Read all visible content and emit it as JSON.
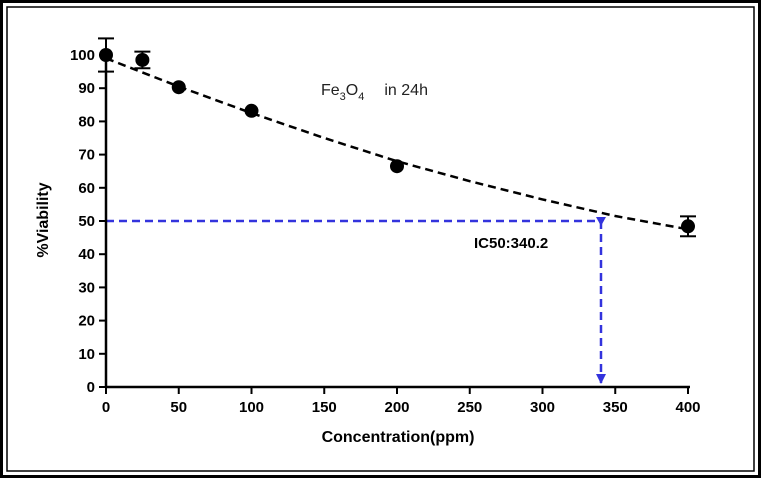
{
  "chart_data": {
    "type": "scatter",
    "title": "",
    "title_parts": {
      "base1": "Fe",
      "sub1": "3",
      "base2": "O",
      "sub2": "4",
      "rest": "in 24h"
    },
    "xlabel": "Concentration(ppm)",
    "ylabel": "%Viability",
    "xlim": [
      0,
      400
    ],
    "ylim": [
      0,
      100
    ],
    "xticks": [
      0,
      50,
      100,
      150,
      200,
      250,
      300,
      350,
      400
    ],
    "yticks": [
      0,
      10,
      20,
      30,
      40,
      50,
      60,
      70,
      80,
      90,
      100
    ],
    "grid": false,
    "x": [
      0,
      25,
      50,
      100,
      200,
      400
    ],
    "y": [
      100,
      98.5,
      90.3,
      83.2,
      66.5,
      48.4
    ],
    "error": [
      5,
      2.5,
      0,
      0,
      0,
      3
    ],
    "fit_curve": {
      "style": "dashed",
      "color": "#000000",
      "x": [
        0,
        50,
        100,
        150,
        200,
        250,
        300,
        350,
        400
      ],
      "y": [
        99,
        90.5,
        82.5,
        75,
        68,
        62,
        56.5,
        51.5,
        47.5
      ]
    },
    "ic50": {
      "label": "IC50:340.2",
      "x": 340.2,
      "y": 50,
      "color": "#3333dd"
    }
  }
}
